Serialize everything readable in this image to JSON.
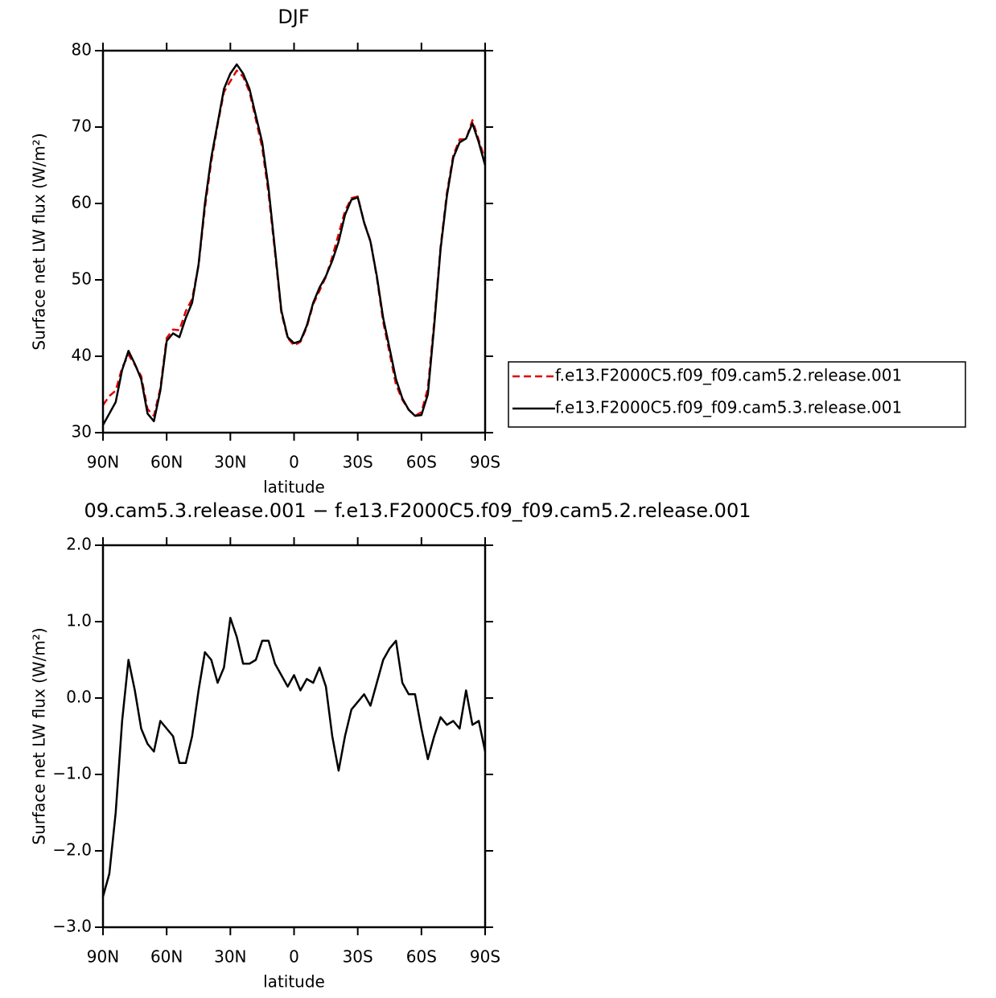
{
  "chart_data": [
    {
      "type": "line",
      "title": "DJF",
      "xlabel": "latitude",
      "ylabel": "Surface net LW flux (W/m²)",
      "xlim": [
        90,
        -90
      ],
      "ylim": [
        30,
        80
      ],
      "xticks": [
        {
          "value": 90,
          "label": "90N"
        },
        {
          "value": 60,
          "label": "60N"
        },
        {
          "value": 30,
          "label": "30N"
        },
        0,
        {
          "value": -30,
          "label": "30S"
        },
        {
          "value": -60,
          "label": "60S"
        },
        {
          "value": -90,
          "label": "90S"
        }
      ],
      "yticks": [
        30,
        40,
        50,
        60,
        70,
        80
      ],
      "legend": "right",
      "x": [
        90,
        87,
        84,
        81,
        78,
        75,
        72,
        69,
        66,
        63,
        60,
        57,
        54,
        51,
        48,
        45,
        42,
        39,
        36,
        33,
        30,
        27,
        24,
        21,
        18,
        15,
        12,
        9,
        6,
        3,
        0,
        -3,
        -6,
        -9,
        -12,
        -15,
        -18,
        -21,
        -24,
        -27,
        -30,
        -33,
        -36,
        -39,
        -42,
        -45,
        -48,
        -51,
        -54,
        -57,
        -60,
        -63,
        -66,
        -69,
        -72,
        -75,
        -78,
        -81,
        -84,
        -87,
        -90
      ],
      "series": [
        {
          "name": "f.e13.F2000C5.f09_f09.cam5.2.release.001",
          "color": "#e00000",
          "dashed": true,
          "values": [
            33.6,
            34.8,
            35.5,
            38.5,
            40.2,
            38.9,
            37.4,
            33.1,
            32.2,
            35.8,
            42.4,
            43.5,
            43.4,
            45.9,
            47.5,
            51.9,
            59.4,
            65.5,
            70.3,
            74.6,
            76.0,
            77.4,
            76.6,
            74.6,
            71.0,
            67.3,
            61.3,
            53.6,
            45.7,
            42.4,
            41.4,
            41.9,
            43.8,
            46.8,
            48.6,
            50.4,
            53.0,
            56.0,
            59.0,
            60.7,
            60.9,
            57.5,
            55.1,
            50.3,
            44.5,
            40.4,
            36.3,
            34.3,
            33.0,
            32.2,
            32.7,
            35.8,
            44.5,
            54.3,
            61.4,
            66.3,
            68.4,
            68.4,
            70.9,
            68.3,
            65.7
          ]
        },
        {
          "name": "f.e13.F2000C5.f09_f09.cam5.3.release.001",
          "color": "#000000",
          "dashed": false,
          "values": [
            31,
            32.5,
            34,
            38.2,
            40.7,
            39,
            37,
            32.5,
            31.5,
            35.5,
            42,
            43,
            42.5,
            45,
            47,
            52,
            60,
            66,
            70.5,
            75,
            77,
            78.2,
            77,
            75,
            71.5,
            68,
            62,
            54,
            46,
            42.5,
            41.7,
            42,
            44,
            47,
            49,
            50.5,
            52.5,
            55,
            58.5,
            60.5,
            60.8,
            57.5,
            55,
            50.5,
            45,
            41,
            37,
            34.5,
            33,
            32.2,
            32.3,
            35,
            44,
            54,
            61,
            66,
            68,
            68.5,
            70.5,
            68,
            65
          ]
        }
      ]
    },
    {
      "type": "line",
      "title": "09.cam5.3.release.001 − f.e13.F2000C5.f09_f09.cam5.2.release.001",
      "xlabel": "latitude",
      "ylabel": "Surface net LW flux (W/m²)",
      "xlim": [
        90,
        -90
      ],
      "ylim": [
        -3,
        2
      ],
      "xticks": [
        {
          "value": 90,
          "label": "90N"
        },
        {
          "value": 60,
          "label": "60N"
        },
        {
          "value": 30,
          "label": "30N"
        },
        0,
        {
          "value": -30,
          "label": "30S"
        },
        {
          "value": -60,
          "label": "60S"
        },
        {
          "value": -90,
          "label": "90S"
        }
      ],
      "yticks": [
        {
          "value": -3,
          "label": "−3.0"
        },
        {
          "value": -2,
          "label": "−2.0"
        },
        {
          "value": -1,
          "label": "−1.0"
        },
        {
          "value": 0,
          "label": "0.0"
        },
        {
          "value": 1,
          "label": "1.0"
        },
        {
          "value": 2,
          "label": "2.0"
        }
      ],
      "x": [
        90,
        87,
        84,
        81,
        78,
        75,
        72,
        69,
        66,
        63,
        60,
        57,
        54,
        51,
        48,
        45,
        42,
        39,
        36,
        33,
        30,
        27,
        24,
        21,
        18,
        15,
        12,
        9,
        6,
        3,
        0,
        -3,
        -6,
        -9,
        -12,
        -15,
        -18,
        -21,
        -24,
        -27,
        -30,
        -33,
        -36,
        -39,
        -42,
        -45,
        -48,
        -51,
        -54,
        -57,
        -60,
        -63,
        -66,
        -69,
        -72,
        -75,
        -78,
        -81,
        -84,
        -87,
        -90
      ],
      "series": [
        {
          "color": "#000000",
          "dashed": false,
          "values": [
            -2.6,
            -2.3,
            -1.5,
            -0.3,
            0.5,
            0.1,
            -0.4,
            -0.6,
            -0.7,
            -0.3,
            -0.4,
            -0.5,
            -0.85,
            -0.85,
            -0.5,
            0.1,
            0.6,
            0.5,
            0.2,
            0.4,
            1.05,
            0.8,
            0.45,
            0.45,
            0.5,
            0.75,
            0.75,
            0.45,
            0.3,
            0.15,
            0.3,
            0.1,
            0.25,
            0.2,
            0.4,
            0.15,
            -0.5,
            -0.95,
            -0.5,
            -0.15,
            -0.05,
            0.05,
            -0.1,
            0.2,
            0.5,
            0.65,
            0.75,
            0.2,
            0.05,
            0.05,
            -0.4,
            -0.8,
            -0.5,
            -0.25,
            -0.35,
            -0.3,
            -0.4,
            0.1,
            -0.35,
            -0.3,
            -0.7
          ]
        }
      ]
    }
  ]
}
